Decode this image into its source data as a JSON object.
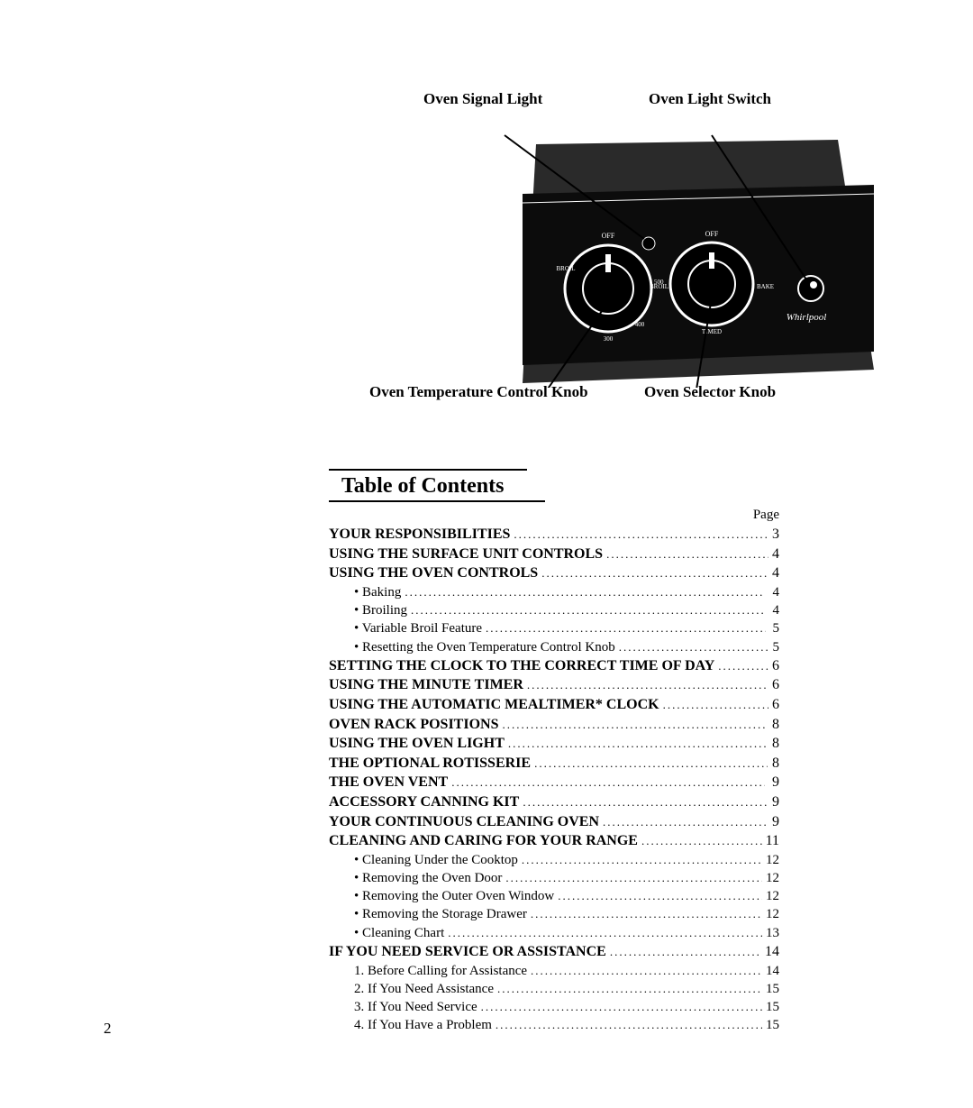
{
  "diagram": {
    "labels": {
      "signal_light": "Oven Signal Light",
      "light_switch": "Oven Light Switch",
      "temp_knob": "Oven Temperature Control Knob",
      "selector_knob": "Oven Selector Knob"
    },
    "panel": {
      "background_color": "#0c0c0c",
      "shell_color": "#2a2a2a",
      "dial_color": "#000000",
      "dial_ring_color": "#ffffff",
      "indicator_light_color": "#000000",
      "logo_text": "Whirlpool",
      "logo_color": "#ffffff",
      "knob_tick_labels_left": {
        "top": "OFF",
        "right": "500",
        "bottom_right": "400",
        "bottom": "300",
        "left": "BROIL"
      },
      "knob_tick_labels_right": {
        "top": "OFF",
        "right": "BAKE",
        "bottom": "TIMED",
        "left": "BROIL"
      }
    }
  },
  "toc": {
    "title": "Table of Contents",
    "page_header": "Page",
    "entries": [
      {
        "label": "YOUR RESPONSIBILITIES",
        "page": "3",
        "bold": true
      },
      {
        "label": "USING THE SURFACE UNIT CONTROLS",
        "page": "4",
        "bold": true
      },
      {
        "label": "USING THE OVEN CONTROLS",
        "page": "4",
        "bold": true
      },
      {
        "label": "Baking",
        "page": "4",
        "sub": true,
        "bullet": true
      },
      {
        "label": "Broiling",
        "page": "4",
        "sub": true,
        "bullet": true
      },
      {
        "label": "Variable Broil Feature",
        "page": "5",
        "sub": true,
        "bullet": true
      },
      {
        "label": "Resetting the Oven Temperature Control Knob",
        "page": "5",
        "sub": true,
        "bullet": true
      },
      {
        "label": "SETTING THE CLOCK TO THE CORRECT TIME OF DAY",
        "page": "6",
        "bold": true
      },
      {
        "label": "USING THE MINUTE TIMER",
        "page": "6",
        "bold": true
      },
      {
        "label": "USING THE AUTOMATIC MEALTIMER* CLOCK",
        "page": "6",
        "bold": true
      },
      {
        "label": "OVEN RACK POSITIONS",
        "page": "8",
        "bold": true
      },
      {
        "label": "USING THE OVEN LIGHT",
        "page": "8",
        "bold": true
      },
      {
        "label": "THE OPTIONAL ROTISSERIE",
        "page": "8",
        "bold": true
      },
      {
        "label": "THE OVEN VENT",
        "page": "9",
        "bold": true
      },
      {
        "label": "ACCESSORY CANNING KIT",
        "page": "9",
        "bold": true
      },
      {
        "label": "YOUR CONTINUOUS CLEANING OVEN",
        "page": "9",
        "bold": true
      },
      {
        "label": "CLEANING AND CARING FOR YOUR RANGE",
        "page": "11",
        "bold": true
      },
      {
        "label": "Cleaning Under the Cooktop",
        "page": "12",
        "sub": true,
        "bullet": true
      },
      {
        "label": "Removing the Oven Door",
        "page": "12",
        "sub": true,
        "bullet": true
      },
      {
        "label": "Removing the Outer Oven Window",
        "page": "12",
        "sub": true,
        "bullet": true
      },
      {
        "label": "Removing the Storage Drawer",
        "page": "12",
        "sub": true,
        "bullet": true
      },
      {
        "label": "Cleaning Chart",
        "page": "13",
        "sub": true,
        "bullet": true
      },
      {
        "label": "IF YOU NEED SERVICE OR ASSISTANCE",
        "page": "14",
        "bold": true
      },
      {
        "label": "Before Calling for Assistance",
        "page": "14",
        "sub": true,
        "num": "1"
      },
      {
        "label": "If You Need Assistance",
        "page": "15",
        "sub": true,
        "num": "2"
      },
      {
        "label": "If You Need Service",
        "page": "15",
        "sub": true,
        "num": "3"
      },
      {
        "label": "If You Have a Problem",
        "page": "15",
        "sub": true,
        "num": "4"
      }
    ]
  },
  "page_number": "2"
}
